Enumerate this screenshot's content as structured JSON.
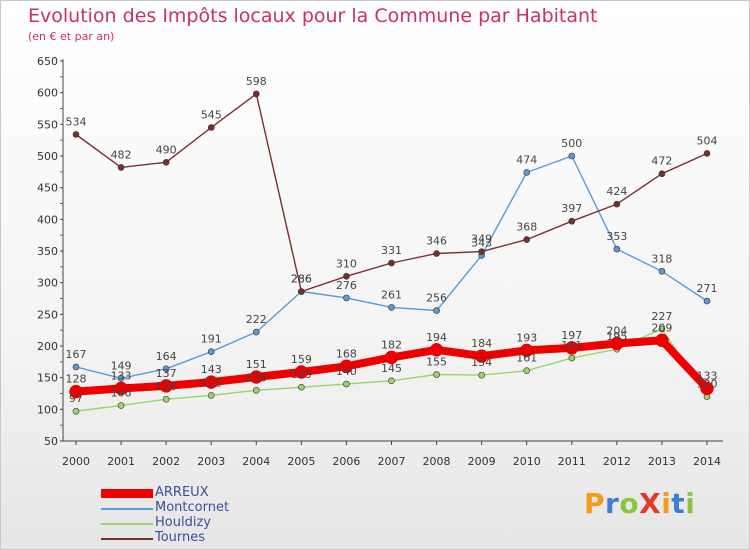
{
  "header": {
    "title": "Evolution des Impôts locaux pour la Commune par Habitant",
    "subtitle": "(en € et par an)"
  },
  "brand": {
    "text": "Proxiti",
    "letters": [
      {
        "ch": "P",
        "color": "#f59a1b"
      },
      {
        "ch": "r",
        "color": "#3b7fd0"
      },
      {
        "ch": "o",
        "color": "#8cc63f"
      },
      {
        "ch": "X",
        "color": "#e03a2a"
      },
      {
        "ch": "i",
        "color": "#f59a1b"
      },
      {
        "ch": "t",
        "color": "#3b7fd0"
      },
      {
        "ch": "i",
        "color": "#8cc63f"
      }
    ]
  },
  "chart_data": {
    "type": "line",
    "title": "Evolution des Impôts locaux pour la Commune par Habitant",
    "subtitle": "(en € et par an)",
    "xlabel": "",
    "ylabel": "",
    "ylim": [
      50,
      650
    ],
    "yticks": [
      50,
      100,
      150,
      200,
      250,
      300,
      350,
      400,
      450,
      500,
      550,
      600,
      650
    ],
    "categories": [
      "2000",
      "2001",
      "2002",
      "2003",
      "2004",
      "2005",
      "2006",
      "2007",
      "2008",
      "2009",
      "2010",
      "2011",
      "2012",
      "2013",
      "2014"
    ],
    "grid": false,
    "legend_position": "bottom-left",
    "series": [
      {
        "name": "ARREUX",
        "color": "#ee0000",
        "bold": true,
        "values": [
          128,
          133,
          137,
          143,
          151,
          159,
          168,
          182,
          194,
          184,
          193,
          197,
          204,
          209,
          133
        ],
        "labels": [
          "128",
          "133",
          "137",
          "143",
          "151",
          "159",
          "168",
          "182",
          "194",
          "184",
          "193",
          "197",
          "204",
          "209",
          "133"
        ]
      },
      {
        "name": "Montcornet",
        "color": "#5b9bd5",
        "bold": false,
        "values": [
          167,
          149,
          164,
          191,
          222,
          286,
          276,
          261,
          256,
          343,
          474,
          500,
          353,
          318,
          271
        ],
        "labels": [
          "167",
          "149",
          "164",
          "191",
          "222",
          "286",
          "276",
          "261",
          "256",
          "343",
          "474",
          "500",
          "353",
          "318",
          "271"
        ]
      },
      {
        "name": "Houldizy",
        "color": "#9bd46a",
        "bold": false,
        "values": [
          97,
          106,
          116,
          122,
          130,
          135,
          140,
          145,
          155,
          154,
          161,
          181,
          195,
          227,
          120
        ],
        "labels": [
          "97",
          "106",
          "116",
          "122",
          "130",
          "135",
          "140",
          "145",
          "155",
          "154",
          "161",
          "181",
          "195",
          "227",
          "120"
        ]
      },
      {
        "name": "Tournes",
        "color": "#7a2f2f",
        "bold": false,
        "values": [
          534,
          482,
          490,
          545,
          598,
          286,
          310,
          331,
          346,
          349,
          368,
          397,
          424,
          472,
          504
        ],
        "labels": [
          "534",
          "482",
          "490",
          "545",
          "598",
          "286",
          "310",
          "331",
          "346",
          "349",
          "368",
          "397",
          "424",
          "472",
          "504"
        ]
      }
    ]
  }
}
